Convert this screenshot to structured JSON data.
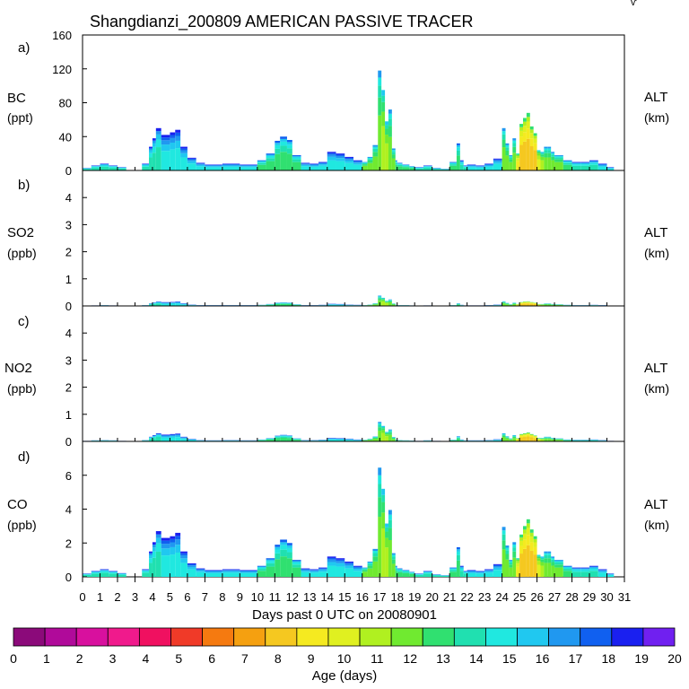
{
  "chart_data": {
    "type": "area",
    "title": "Shangdianzi_200809 AMERICAN PASSIVE TRACER",
    "xlabel": "Days past 0 UTC on 20080901",
    "x_ticks": [
      "0",
      "1",
      "2",
      "3",
      "4",
      "5",
      "6",
      "7",
      "8",
      "9",
      "10",
      "11",
      "12",
      "13",
      "14",
      "15",
      "16",
      "17",
      "18",
      "19",
      "20",
      "21",
      "22",
      "23",
      "24",
      "25",
      "26",
      "27",
      "28",
      "29",
      "30",
      "31"
    ],
    "xlim": [
      0,
      31
    ],
    "colorbar": {
      "label": "Age (days)",
      "ticks": [
        "0",
        "1",
        "2",
        "3",
        "4",
        "5",
        "6",
        "7",
        "8",
        "9",
        "10",
        "11",
        "12",
        "13",
        "14",
        "15",
        "16",
        "17",
        "18",
        "19",
        "20"
      ],
      "colors": [
        "#8b0a7a",
        "#b00a9a",
        "#d8109e",
        "#f01a8c",
        "#f01060",
        "#f03a28",
        "#f57a10",
        "#f5a010",
        "#f5c820",
        "#f5ea20",
        "#e0f020",
        "#b0f020",
        "#70ea30",
        "#30e070",
        "#20e0b0",
        "#20e8e0",
        "#20c8f0",
        "#2098f0",
        "#1060f0",
        "#1a20f0",
        "#7020f0"
      ]
    },
    "times": [
      0,
      0.5,
      1,
      1.5,
      2,
      2.5,
      3,
      3.4,
      3.8,
      4,
      4.2,
      4.5,
      5,
      5.3,
      5.6,
      6,
      6.5,
      7,
      8,
      9,
      10,
      10.5,
      11,
      11.3,
      11.7,
      12,
      12.5,
      13,
      13.5,
      14,
      14.5,
      15,
      15.5,
      16,
      16.3,
      16.6,
      16.9,
      17.1,
      17.3,
      17.5,
      17.7,
      17.9,
      18,
      18.3,
      18.7,
      19,
      19.5,
      20,
      20.5,
      21,
      21.4,
      21.6,
      21.8,
      22,
      22.5,
      23,
      23.5,
      24,
      24.2,
      24.4,
      24.6,
      24.8,
      25,
      25.2,
      25.4,
      25.6,
      25.8,
      26,
      26.2,
      26.4,
      26.6,
      26.8,
      27,
      27.5,
      28,
      28.5,
      29,
      29.5,
      30
    ],
    "panels": [
      {
        "letter": "a)",
        "species": "BC",
        "unit": "(ppt)",
        "right_label": "ALT",
        "right_unit": "(km)",
        "ylim": [
          0,
          160
        ],
        "yticks": [
          0,
          40,
          80,
          120,
          160
        ],
        "values": [
          3,
          6,
          8,
          6,
          4,
          0,
          0,
          8,
          28,
          38,
          50,
          42,
          45,
          48,
          28,
          15,
          9,
          7,
          8,
          7,
          12,
          20,
          35,
          40,
          36,
          18,
          9,
          8,
          10,
          22,
          20,
          16,
          12,
          10,
          16,
          30,
          118,
          95,
          58,
          72,
          26,
          12,
          9,
          7,
          5,
          4,
          6,
          3,
          2,
          10,
          32,
          12,
          6,
          7,
          6,
          8,
          14,
          50,
          32,
          18,
          38,
          20,
          55,
          62,
          68,
          52,
          44,
          24,
          22,
          28,
          28,
          22,
          18,
          12,
          10,
          10,
          12,
          8,
          4
        ],
        "dominant_age": [
          14,
          14,
          14,
          14,
          14,
          14,
          14,
          14,
          14,
          14,
          14,
          15,
          15,
          15,
          15,
          15,
          15,
          15,
          15,
          15,
          13,
          13,
          13,
          13,
          13,
          13,
          15,
          15,
          15,
          15,
          15,
          15,
          15,
          12,
          12,
          12,
          12,
          11,
          11,
          12,
          12,
          13,
          13,
          13,
          13,
          14,
          14,
          14,
          14,
          13,
          13,
          14,
          14,
          15,
          15,
          15,
          15,
          12,
          12,
          12,
          12,
          9,
          8,
          8,
          8,
          8,
          8,
          10,
          11,
          12,
          12,
          12,
          12,
          13,
          14,
          14,
          14,
          15,
          15
        ]
      },
      {
        "letter": "b)",
        "species": "SO2",
        "unit": "(ppb)",
        "right_label": "ALT",
        "right_unit": "(km)",
        "ylim": [
          0,
          5
        ],
        "yticks": [
          0,
          1,
          2,
          3,
          4
        ],
        "values": [
          0.01,
          0.02,
          0.03,
          0.02,
          0.01,
          0,
          0,
          0.03,
          0.1,
          0.13,
          0.16,
          0.14,
          0.15,
          0.16,
          0.1,
          0.05,
          0.03,
          0.03,
          0.03,
          0.03,
          0.04,
          0.07,
          0.12,
          0.13,
          0.12,
          0.06,
          0.03,
          0.03,
          0.04,
          0.08,
          0.07,
          0.05,
          0.04,
          0.03,
          0.05,
          0.1,
          0.38,
          0.3,
          0.19,
          0.24,
          0.09,
          0.04,
          0.03,
          0.03,
          0.02,
          0.01,
          0.02,
          0.01,
          0.01,
          0.03,
          0.1,
          0.04,
          0.02,
          0.02,
          0.02,
          0.03,
          0.05,
          0.17,
          0.11,
          0.06,
          0.12,
          0.07,
          0.14,
          0.16,
          0.17,
          0.14,
          0.12,
          0.07,
          0.07,
          0.09,
          0.09,
          0.07,
          0.06,
          0.04,
          0.03,
          0.03,
          0.04,
          0.03,
          0.01
        ],
        "dominant_age": [
          14,
          14,
          14,
          14,
          14,
          14,
          14,
          14,
          14,
          14,
          14,
          15,
          15,
          15,
          15,
          15,
          15,
          15,
          15,
          15,
          13,
          13,
          13,
          13,
          13,
          13,
          15,
          15,
          15,
          15,
          15,
          15,
          15,
          12,
          12,
          12,
          12,
          11,
          11,
          12,
          12,
          13,
          13,
          13,
          13,
          14,
          14,
          14,
          14,
          13,
          13,
          14,
          14,
          15,
          15,
          15,
          15,
          12,
          12,
          12,
          12,
          9,
          8,
          8,
          8,
          8,
          8,
          10,
          11,
          12,
          12,
          12,
          12,
          13,
          14,
          14,
          14,
          15,
          15
        ]
      },
      {
        "letter": "c)",
        "species": "NO2",
        "unit": "(ppb)",
        "right_label": "ALT",
        "right_unit": "(km)",
        "ylim": [
          0,
          5
        ],
        "yticks": [
          0,
          1,
          2,
          3,
          4
        ],
        "values": [
          0.02,
          0.04,
          0.05,
          0.04,
          0.02,
          0,
          0,
          0.05,
          0.17,
          0.23,
          0.3,
          0.25,
          0.27,
          0.29,
          0.17,
          0.09,
          0.05,
          0.04,
          0.05,
          0.04,
          0.07,
          0.12,
          0.21,
          0.24,
          0.22,
          0.11,
          0.05,
          0.05,
          0.06,
          0.13,
          0.12,
          0.1,
          0.07,
          0.06,
          0.1,
          0.18,
          0.72,
          0.57,
          0.35,
          0.44,
          0.16,
          0.07,
          0.05,
          0.04,
          0.03,
          0.02,
          0.04,
          0.02,
          0.01,
          0.06,
          0.19,
          0.07,
          0.04,
          0.04,
          0.04,
          0.05,
          0.08,
          0.3,
          0.19,
          0.11,
          0.23,
          0.12,
          0.27,
          0.3,
          0.33,
          0.27,
          0.22,
          0.13,
          0.13,
          0.17,
          0.17,
          0.13,
          0.11,
          0.07,
          0.06,
          0.06,
          0.07,
          0.05,
          0.02
        ],
        "dominant_age": [
          14,
          14,
          14,
          14,
          14,
          14,
          14,
          14,
          14,
          14,
          14,
          15,
          15,
          15,
          15,
          15,
          15,
          15,
          15,
          15,
          13,
          13,
          13,
          13,
          13,
          13,
          15,
          15,
          15,
          15,
          15,
          15,
          15,
          12,
          12,
          12,
          12,
          11,
          11,
          12,
          12,
          13,
          13,
          13,
          13,
          14,
          14,
          14,
          14,
          13,
          13,
          14,
          14,
          15,
          15,
          15,
          15,
          12,
          12,
          12,
          12,
          9,
          8,
          8,
          8,
          8,
          8,
          10,
          11,
          12,
          12,
          12,
          12,
          13,
          14,
          14,
          14,
          15,
          15
        ]
      },
      {
        "letter": "d)",
        "species": "CO",
        "unit": "(ppb)",
        "right_label": "ALT",
        "right_unit": "(km)",
        "ylim": [
          0,
          8
        ],
        "yticks": [
          0,
          2,
          4,
          6
        ],
        "values": [
          0.2,
          0.35,
          0.45,
          0.35,
          0.22,
          0,
          0,
          0.45,
          1.5,
          2.05,
          2.7,
          2.3,
          2.4,
          2.6,
          1.5,
          0.8,
          0.5,
          0.4,
          0.45,
          0.4,
          0.65,
          1.1,
          1.9,
          2.2,
          2,
          1,
          0.5,
          0.45,
          0.55,
          1.2,
          1.1,
          0.9,
          0.65,
          0.55,
          0.9,
          1.65,
          6.45,
          5.2,
          3.15,
          3.95,
          1.4,
          0.65,
          0.5,
          0.4,
          0.3,
          0.2,
          0.35,
          0.15,
          0.1,
          0.55,
          1.75,
          0.65,
          0.35,
          0.4,
          0.35,
          0.45,
          0.75,
          2.95,
          1.85,
          1,
          2.05,
          1.1,
          2.5,
          3,
          3.4,
          2.8,
          2.4,
          1.3,
          1.2,
          1.5,
          1.5,
          1.2,
          1,
          0.65,
          0.55,
          0.55,
          0.65,
          0.45,
          0.2
        ],
        "dominant_age": [
          14,
          14,
          14,
          14,
          14,
          14,
          14,
          14,
          14,
          14,
          14,
          15,
          15,
          15,
          15,
          15,
          15,
          15,
          15,
          15,
          13,
          13,
          13,
          13,
          13,
          13,
          15,
          15,
          15,
          15,
          15,
          15,
          15,
          12,
          12,
          12,
          12,
          11,
          11,
          12,
          12,
          13,
          13,
          13,
          13,
          14,
          14,
          14,
          14,
          13,
          13,
          14,
          14,
          15,
          15,
          15,
          15,
          12,
          12,
          12,
          12,
          9,
          8,
          8,
          8,
          8,
          8,
          10,
          11,
          12,
          12,
          12,
          12,
          13,
          14,
          14,
          14,
          15,
          15
        ]
      }
    ]
  }
}
